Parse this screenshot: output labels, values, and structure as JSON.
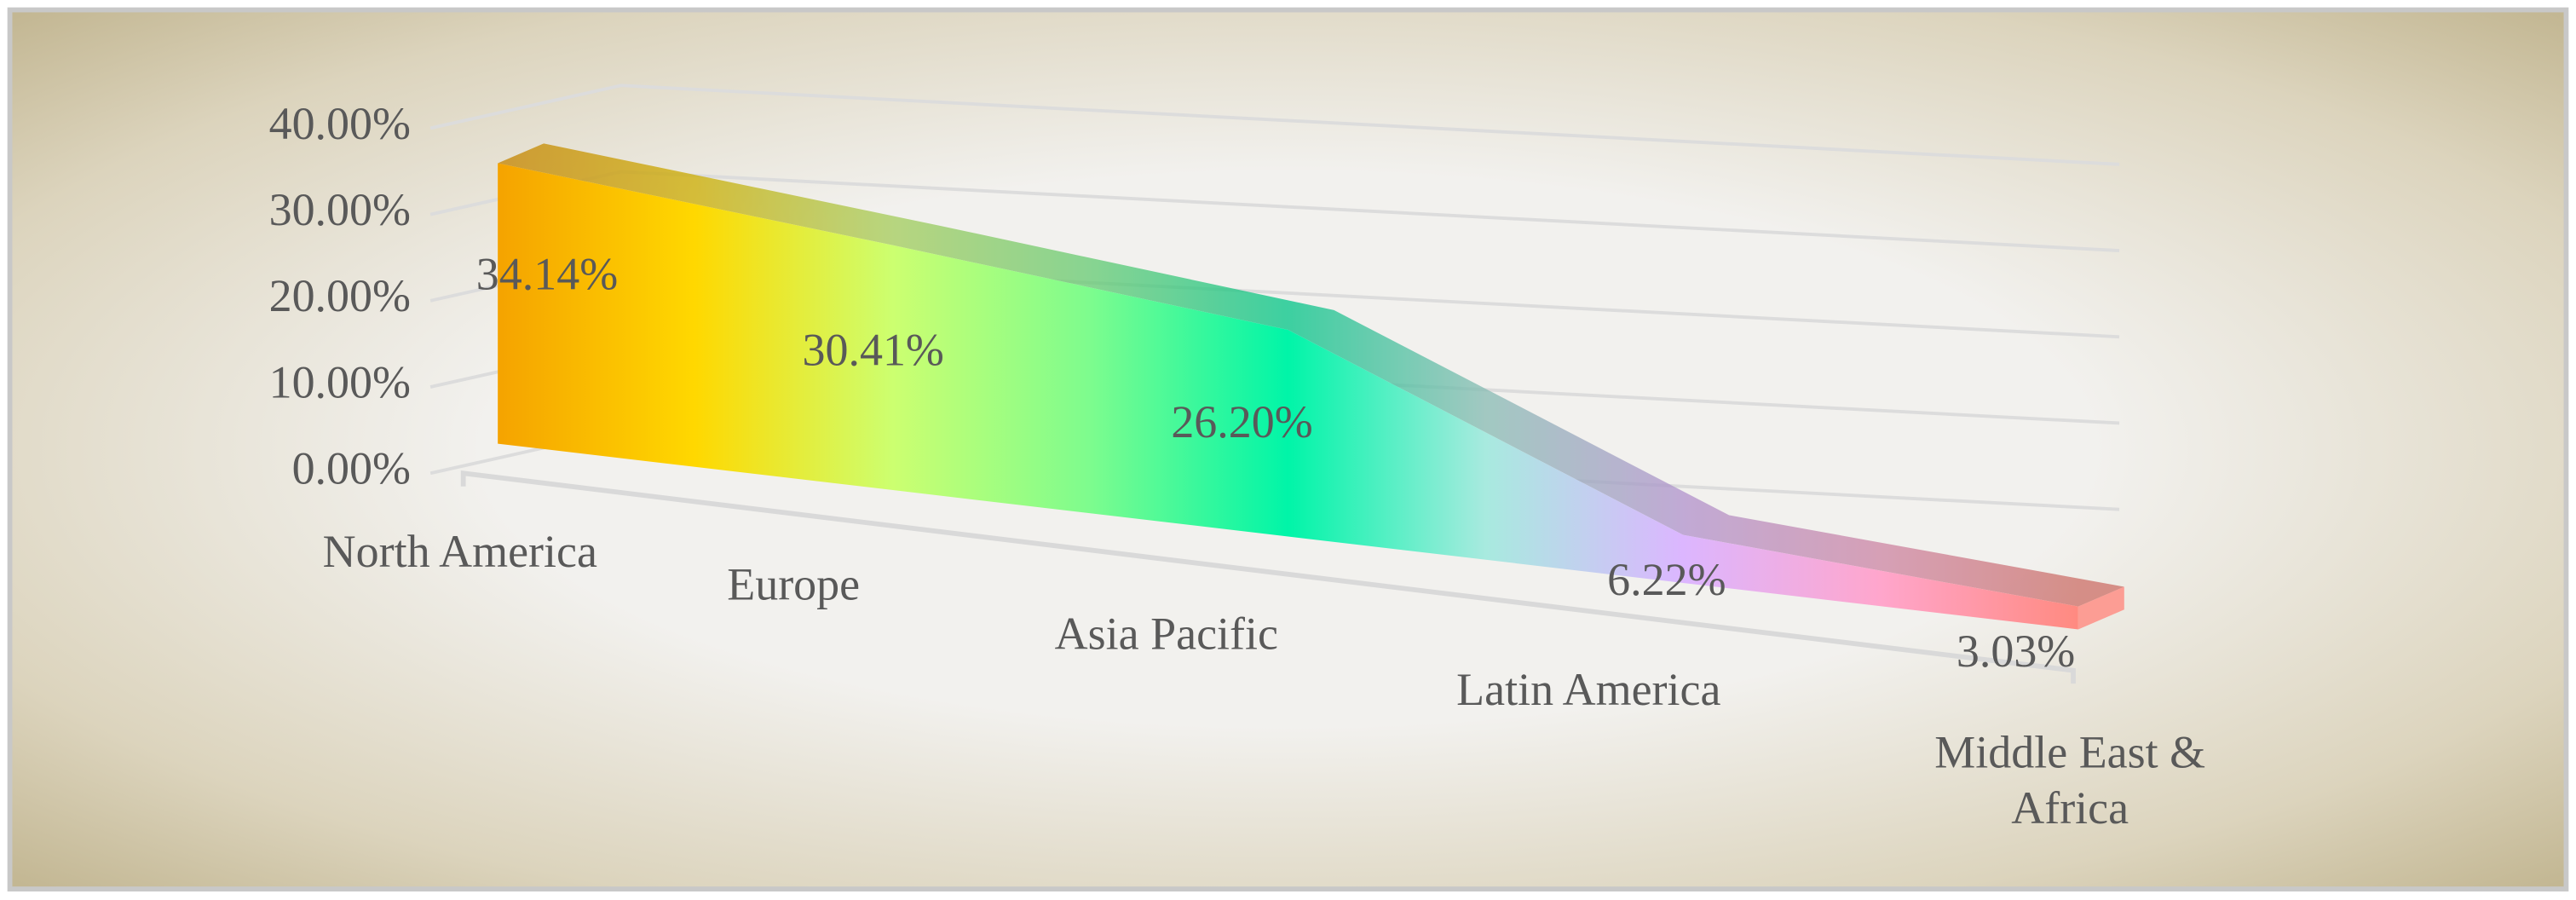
{
  "chart_data": {
    "type": "area3d",
    "categories": [
      "North America",
      "Europe",
      "Asia Pacific",
      "Latin America",
      "Middle East & Africa"
    ],
    "values": [
      34.14,
      30.41,
      26.2,
      6.22,
      3.03
    ],
    "value_labels": [
      "34.14%",
      "30.41%",
      "26.20%",
      "6.22%",
      "3.03%"
    ],
    "ylim": [
      0,
      40
    ],
    "yticks": [
      {
        "value": 0,
        "label": "0.00%"
      },
      {
        "value": 10,
        "label": "10.00%"
      },
      {
        "value": 20,
        "label": "20.00%"
      },
      {
        "value": 30,
        "label": "30.00%"
      },
      {
        "value": 40,
        "label": "40.00%"
      }
    ],
    "grid": true,
    "colors": [
      "#f5a300",
      "#ffd800",
      "#ccff70",
      "#7dfc8e",
      "#00f5a8",
      "#a8eadf",
      "#dcb6ff",
      "#ffa6cc",
      "#ff8a80"
    ]
  }
}
